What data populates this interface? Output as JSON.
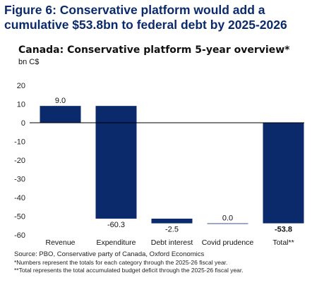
{
  "figure": {
    "title": "Figure 6: Conservative platform would add a cumulative $53.8bn to federal debt by 2025-2026"
  },
  "chart_data": {
    "type": "bar",
    "subtype": "waterfall",
    "title": "Canada: Conservative platform 5-year overview*",
    "ylabel": "bn C$",
    "xlabel": "",
    "categories": [
      "Revenue",
      "Expenditure",
      "Debt interest",
      "Covid prudence",
      "Total**"
    ],
    "values": [
      9.0,
      -60.3,
      -2.5,
      0.0,
      -53.8
    ],
    "value_labels": [
      "9.0",
      "-60.3",
      "-2.5",
      "0.0",
      "-53.8"
    ],
    "is_total": [
      false,
      false,
      false,
      false,
      true
    ],
    "ylim": [
      -60,
      20
    ],
    "yticks": [
      20,
      10,
      0,
      -10,
      -20,
      -30,
      -40,
      -50,
      -60
    ],
    "grid": false,
    "bar_color": "#0b2a6b"
  },
  "notes": {
    "source": "Source: PBO, Conservative party of Canada, Oxford Economics",
    "footnote1": "*Numbers represent the totals for each category through the 2025-26 fiscal year.",
    "footnote2": "**Total represents the total accumulated budget deficit through the 2025-26 fiscal year."
  }
}
